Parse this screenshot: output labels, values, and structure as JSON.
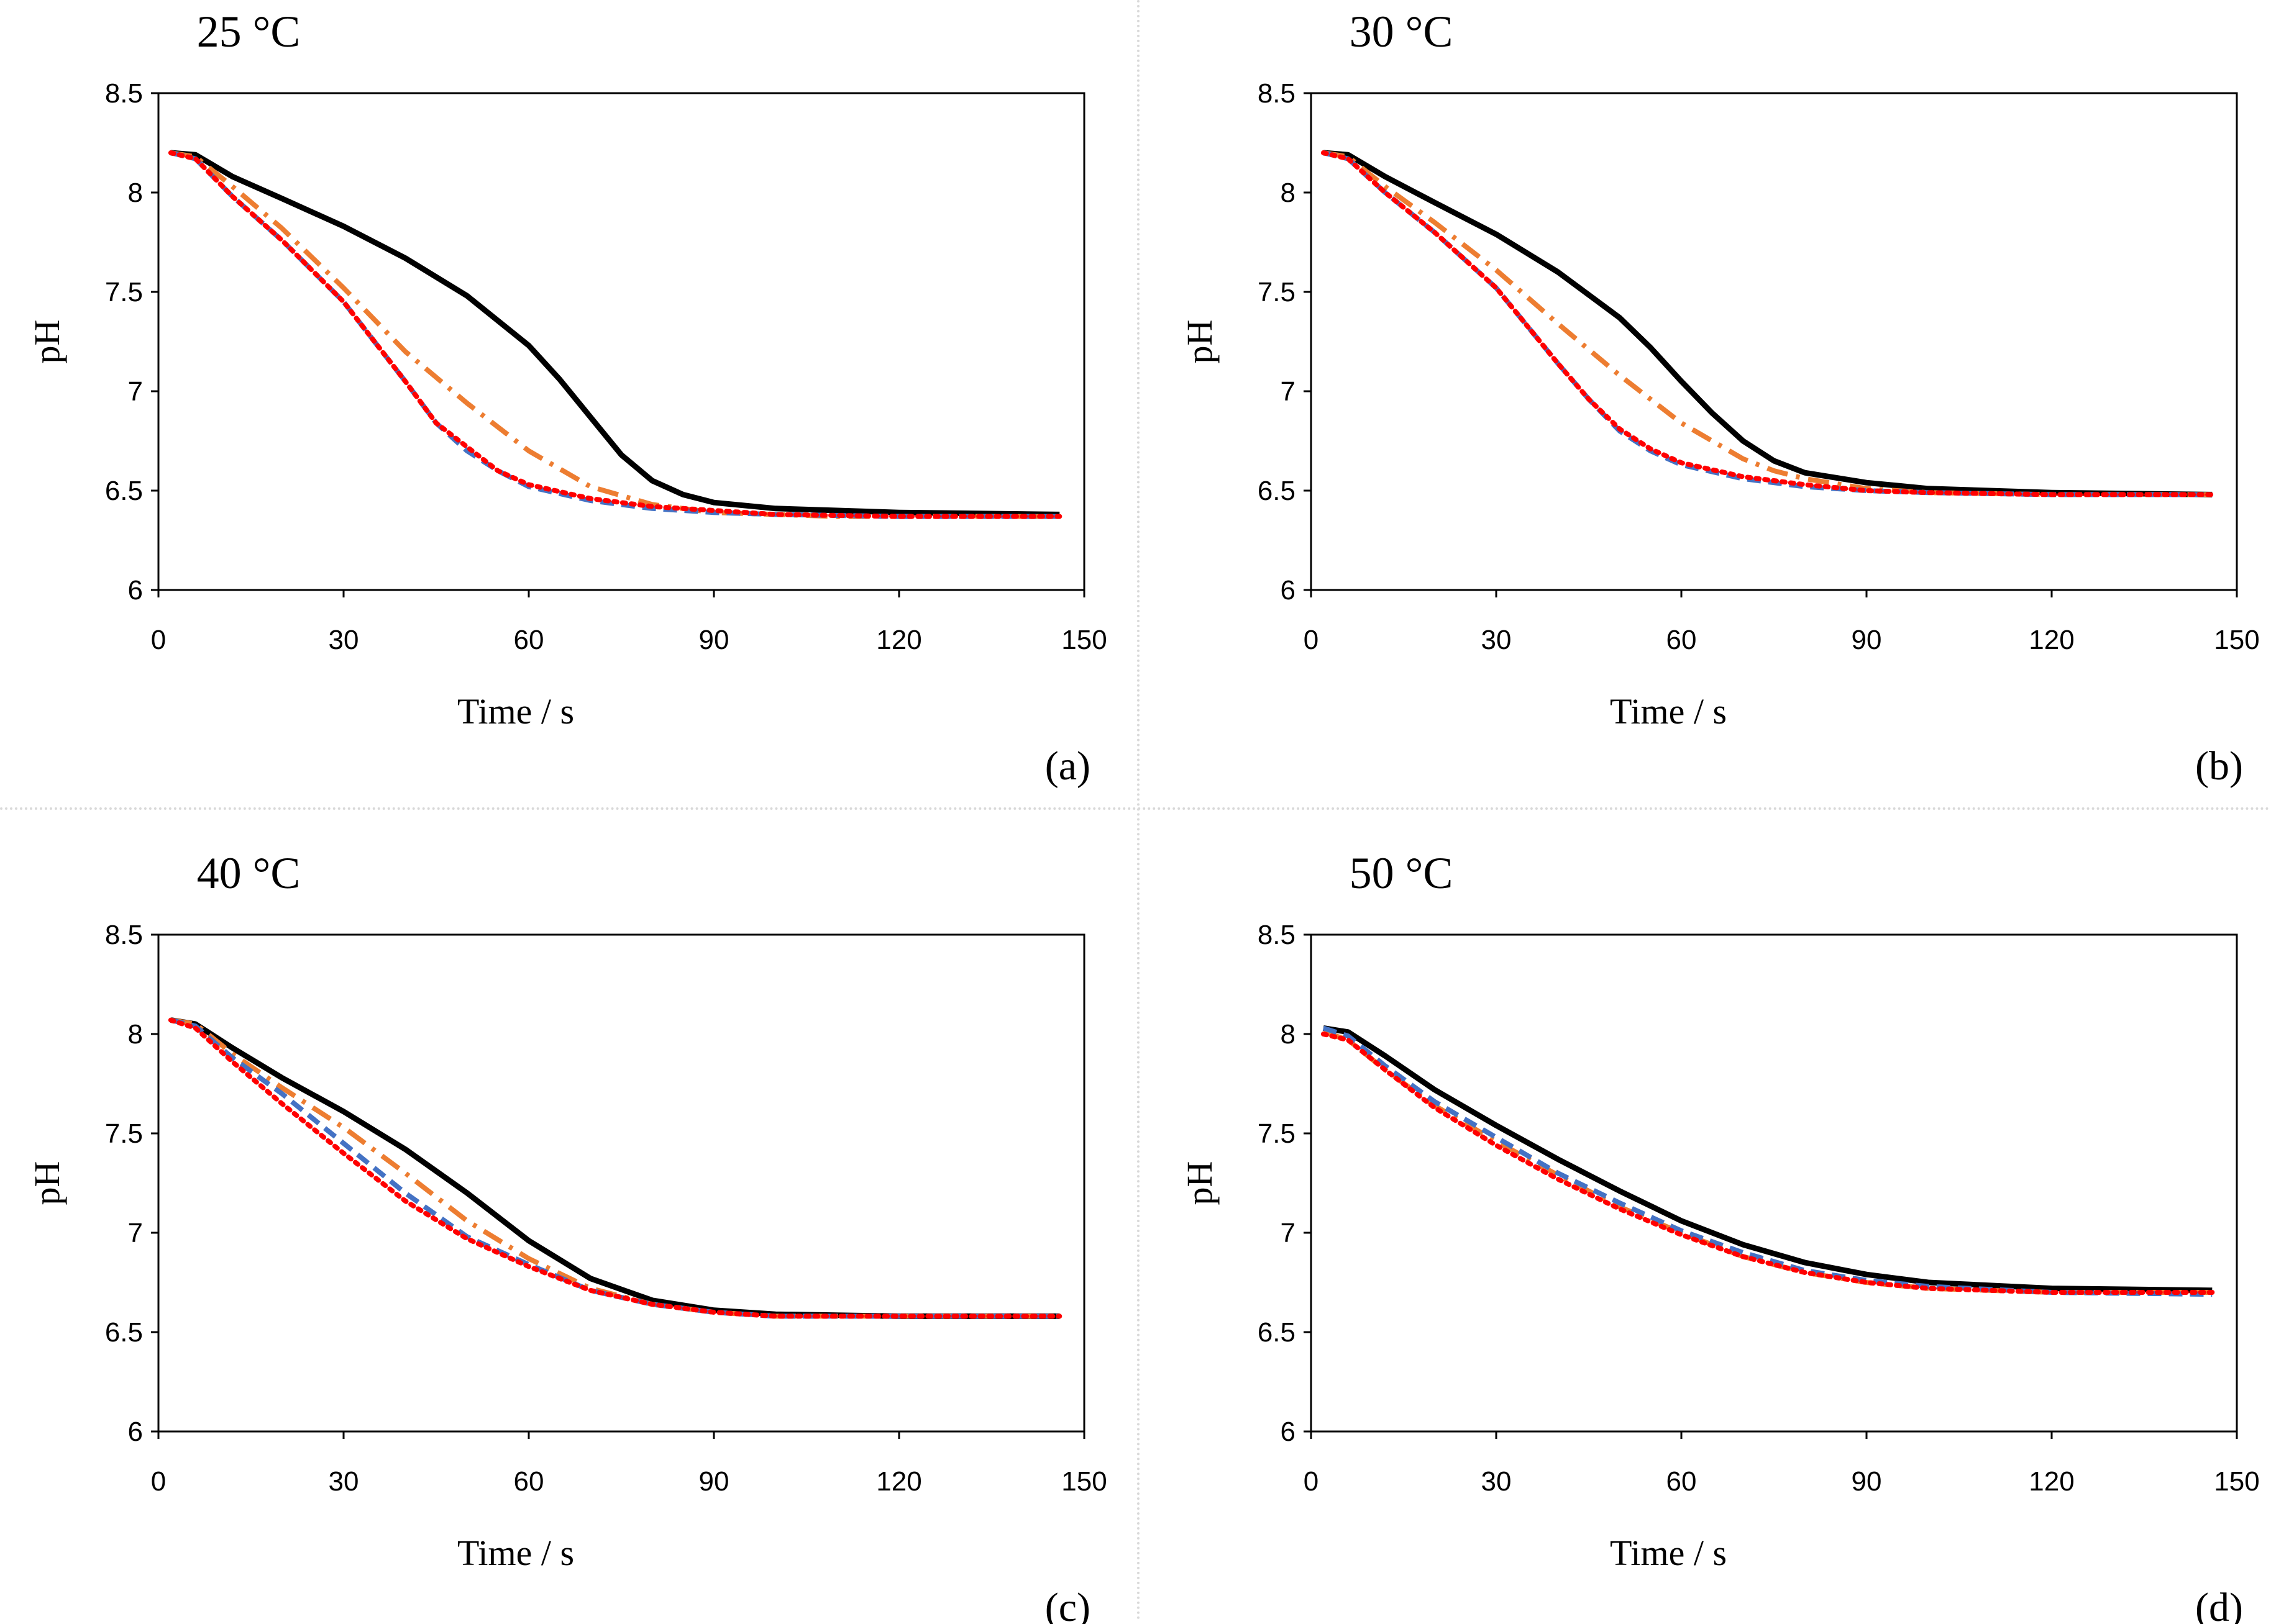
{
  "colors": {
    "black": "#000000",
    "orange": "#ED7D31",
    "blue": "#4472C4",
    "red": "#FF0000"
  },
  "chart_data": [
    {
      "type": "line",
      "panel_label": "(a)",
      "title": "25 °C",
      "xlabel": "Time / s",
      "ylabel": "pH",
      "xlim": [
        0,
        150
      ],
      "ylim": [
        6,
        8.5
      ],
      "xticks": [
        "0",
        "30",
        "60",
        "90",
        "120",
        "150"
      ],
      "yticks": [
        "6",
        "6.5",
        "7",
        "7.5",
        "8",
        "8.5"
      ],
      "series": [
        {
          "name": "black-solid",
          "color": "#000000",
          "style": "solid",
          "x": [
            2,
            6,
            12,
            20,
            30,
            40,
            50,
            60,
            65,
            70,
            75,
            80,
            85,
            90,
            100,
            110,
            120,
            146
          ],
          "y": [
            8.2,
            8.19,
            8.08,
            7.97,
            7.83,
            7.67,
            7.48,
            7.23,
            7.06,
            6.87,
            6.68,
            6.55,
            6.48,
            6.44,
            6.41,
            6.4,
            6.39,
            6.38
          ]
        },
        {
          "name": "orange-dashdot",
          "color": "#ED7D31",
          "style": "dashdot",
          "x": [
            2,
            6,
            12,
            20,
            30,
            40,
            50,
            60,
            70,
            80,
            85,
            90,
            100,
            110,
            120,
            146
          ],
          "y": [
            8.2,
            8.18,
            8.03,
            7.82,
            7.52,
            7.2,
            6.94,
            6.7,
            6.52,
            6.43,
            6.41,
            6.39,
            6.38,
            6.37,
            6.37,
            6.37
          ]
        },
        {
          "name": "blue-dashed",
          "color": "#4472C4",
          "style": "dashed",
          "x": [
            2,
            6,
            12,
            20,
            30,
            40,
            45,
            50,
            55,
            60,
            70,
            80,
            90,
            100,
            120,
            146
          ],
          "y": [
            8.2,
            8.17,
            7.98,
            7.76,
            7.45,
            7.05,
            6.84,
            6.7,
            6.6,
            6.52,
            6.45,
            6.41,
            6.39,
            6.38,
            6.37,
            6.37
          ]
        },
        {
          "name": "red-dotted",
          "color": "#FF0000",
          "style": "dotted",
          "x": [
            2,
            6,
            12,
            20,
            30,
            40,
            45,
            50,
            55,
            60,
            70,
            80,
            90,
            100,
            120,
            146
          ],
          "y": [
            8.2,
            8.17,
            7.98,
            7.76,
            7.45,
            7.05,
            6.84,
            6.72,
            6.6,
            6.53,
            6.46,
            6.42,
            6.4,
            6.38,
            6.37,
            6.37
          ]
        }
      ]
    },
    {
      "type": "line",
      "panel_label": "(b)",
      "title": "30 °C",
      "xlabel": "Time / s",
      "ylabel": "pH",
      "xlim": [
        0,
        150
      ],
      "ylim": [
        6,
        8.5
      ],
      "xticks": [
        "0",
        "30",
        "60",
        "90",
        "120",
        "150"
      ],
      "yticks": [
        "6",
        "6.5",
        "7",
        "7.5",
        "8",
        "8.5"
      ],
      "series": [
        {
          "name": "black-solid",
          "color": "#000000",
          "style": "solid",
          "x": [
            2,
            6,
            12,
            20,
            30,
            40,
            50,
            55,
            60,
            65,
            70,
            75,
            80,
            90,
            100,
            120,
            146
          ],
          "y": [
            8.2,
            8.19,
            8.08,
            7.95,
            7.79,
            7.6,
            7.37,
            7.22,
            7.05,
            6.89,
            6.75,
            6.65,
            6.59,
            6.54,
            6.51,
            6.49,
            6.48
          ]
        },
        {
          "name": "orange-dashdot",
          "color": "#ED7D31",
          "style": "dashdot",
          "x": [
            2,
            6,
            12,
            20,
            30,
            40,
            50,
            60,
            70,
            75,
            80,
            90,
            100,
            120,
            146
          ],
          "y": [
            8.2,
            8.18,
            8.03,
            7.85,
            7.61,
            7.34,
            7.08,
            6.84,
            6.66,
            6.6,
            6.56,
            6.51,
            6.49,
            6.48,
            6.48
          ]
        },
        {
          "name": "blue-dashed",
          "color": "#4472C4",
          "style": "dashed",
          "x": [
            2,
            6,
            12,
            20,
            30,
            40,
            45,
            50,
            55,
            60,
            70,
            80,
            90,
            100,
            120,
            146
          ],
          "y": [
            8.2,
            8.17,
            8.0,
            7.8,
            7.52,
            7.14,
            6.96,
            6.8,
            6.7,
            6.63,
            6.56,
            6.52,
            6.5,
            6.49,
            6.48,
            6.48
          ]
        },
        {
          "name": "red-dotted",
          "color": "#FF0000",
          "style": "dotted",
          "x": [
            2,
            6,
            12,
            20,
            30,
            40,
            45,
            50,
            55,
            60,
            70,
            80,
            90,
            100,
            120,
            146
          ],
          "y": [
            8.2,
            8.17,
            8.0,
            7.8,
            7.52,
            7.14,
            6.96,
            6.81,
            6.71,
            6.64,
            6.57,
            6.53,
            6.5,
            6.49,
            6.48,
            6.48
          ]
        }
      ]
    },
    {
      "type": "line",
      "panel_label": "(c)",
      "title": "40 °C",
      "xlabel": "Time / s",
      "ylabel": "pH",
      "xlim": [
        0,
        150
      ],
      "ylim": [
        6,
        8.5
      ],
      "xticks": [
        "0",
        "30",
        "60",
        "90",
        "120",
        "150"
      ],
      "yticks": [
        "6",
        "6.5",
        "7",
        "7.5",
        "8",
        "8.5"
      ],
      "series": [
        {
          "name": "black-solid",
          "color": "#000000",
          "style": "solid",
          "x": [
            2,
            6,
            12,
            20,
            30,
            40,
            50,
            60,
            70,
            80,
            90,
            100,
            120,
            146
          ],
          "y": [
            8.07,
            8.05,
            7.93,
            7.78,
            7.61,
            7.42,
            7.2,
            6.96,
            6.77,
            6.66,
            6.61,
            6.59,
            6.58,
            6.58
          ]
        },
        {
          "name": "orange-dashdot",
          "color": "#ED7D31",
          "style": "dashdot",
          "x": [
            2,
            6,
            12,
            20,
            30,
            40,
            50,
            60,
            70,
            80,
            90,
            100,
            120,
            146
          ],
          "y": [
            8.07,
            8.05,
            7.9,
            7.73,
            7.53,
            7.3,
            7.06,
            6.87,
            6.72,
            6.64,
            6.6,
            6.58,
            6.58,
            6.58
          ]
        },
        {
          "name": "blue-dashed",
          "color": "#4472C4",
          "style": "dashed",
          "x": [
            2,
            6,
            12,
            20,
            30,
            40,
            50,
            60,
            70,
            80,
            90,
            100,
            120,
            146
          ],
          "y": [
            8.07,
            8.04,
            7.88,
            7.7,
            7.45,
            7.2,
            6.98,
            6.84,
            6.71,
            6.64,
            6.6,
            6.58,
            6.58,
            6.58
          ]
        },
        {
          "name": "red-dotted",
          "color": "#FF0000",
          "style": "dotted",
          "x": [
            2,
            6,
            12,
            20,
            30,
            40,
            50,
            60,
            70,
            80,
            90,
            100,
            120,
            146
          ],
          "y": [
            8.07,
            8.03,
            7.86,
            7.65,
            7.4,
            7.16,
            6.97,
            6.83,
            6.71,
            6.64,
            6.6,
            6.58,
            6.58,
            6.58
          ]
        }
      ]
    },
    {
      "type": "line",
      "panel_label": "(d)",
      "title": "50 °C",
      "xlabel": "Time / s",
      "ylabel": "pH",
      "xlim": [
        0,
        150
      ],
      "ylim": [
        6,
        8.5
      ],
      "xticks": [
        "0",
        "30",
        "60",
        "90",
        "120",
        "150"
      ],
      "yticks": [
        "6",
        "6.5",
        "7",
        "7.5",
        "8",
        "8.5"
      ],
      "series": [
        {
          "name": "black-solid",
          "color": "#000000",
          "style": "solid",
          "x": [
            2,
            6,
            12,
            20,
            30,
            40,
            50,
            60,
            70,
            80,
            90,
            100,
            120,
            146
          ],
          "y": [
            8.03,
            8.01,
            7.89,
            7.72,
            7.54,
            7.37,
            7.21,
            7.06,
            6.94,
            6.85,
            6.79,
            6.75,
            6.72,
            6.71
          ]
        },
        {
          "name": "orange-dashdot",
          "color": "#ED7D31",
          "style": "dashdot",
          "x": [
            2,
            6,
            12,
            20,
            30,
            40,
            50,
            60,
            70,
            80,
            90,
            100,
            120,
            146
          ],
          "y": [
            8.01,
            7.97,
            7.82,
            7.64,
            7.46,
            7.29,
            7.13,
            7.0,
            6.88,
            6.8,
            6.75,
            6.72,
            6.7,
            6.7
          ]
        },
        {
          "name": "blue-dashed",
          "color": "#4472C4",
          "style": "dashed",
          "x": [
            2,
            6,
            12,
            20,
            30,
            40,
            50,
            60,
            70,
            80,
            90,
            100,
            120,
            146
          ],
          "y": [
            8.03,
            7.99,
            7.84,
            7.66,
            7.48,
            7.3,
            7.15,
            7.01,
            6.9,
            6.81,
            6.76,
            6.73,
            6.7,
            6.69
          ]
        },
        {
          "name": "red-dotted",
          "color": "#FF0000",
          "style": "dotted",
          "x": [
            2,
            6,
            12,
            20,
            30,
            40,
            50,
            60,
            70,
            80,
            90,
            100,
            120,
            146
          ],
          "y": [
            8.0,
            7.97,
            7.82,
            7.63,
            7.44,
            7.27,
            7.12,
            6.99,
            6.88,
            6.8,
            6.75,
            6.72,
            6.7,
            6.7
          ]
        }
      ]
    }
  ]
}
